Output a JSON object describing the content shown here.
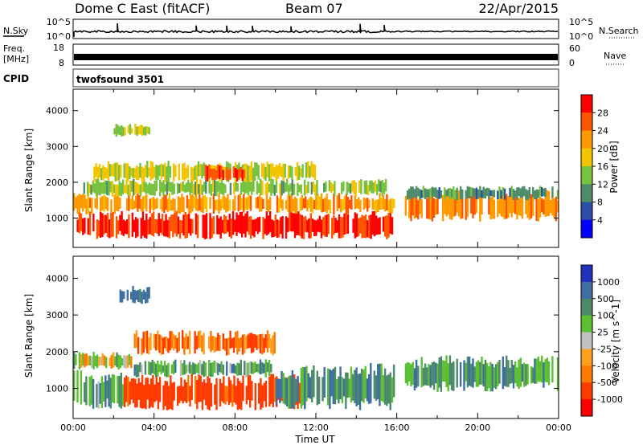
{
  "header": {
    "title": "Dome C East (fitACF)",
    "beam": "Beam 07",
    "date": "22/Apr/2015"
  },
  "housekeeping": {
    "nsky_label": "N.Sky",
    "nsky_top": "10^5",
    "nsky_bottom": "10^0",
    "nsearch_label": "N.Search",
    "nsearch_top": "10^5",
    "nsearch_bottom": "10^0",
    "freq_label_1": "Freq.",
    "freq_label_2": "[MHz]",
    "freq_top": "18",
    "freq_bottom": "8",
    "nave_label": "Nave",
    "nave_top": "60",
    "nave_bottom": "0",
    "cpid_label": "CPID",
    "cpid_value": "twofsound 3501"
  },
  "colors": {
    "power_scale": [
      "#0000ff",
      "#2a4fa5",
      "#4e8c6a",
      "#77c23f",
      "#f5c400",
      "#ff9900",
      "#ff5500",
      "#ff0000"
    ],
    "velocity_scale": [
      "#2233bb",
      "#3f6fa0",
      "#4c8a6a",
      "#5cbf33",
      "#c0c0c0",
      "#ffa020",
      "#ff7a00",
      "#ff3b00",
      "#ff0000"
    ]
  },
  "chart_data": [
    {
      "type": "heatmap",
      "name": "power",
      "xlabel": "",
      "ylabel": "Slant Range [km]",
      "x_ticks": [
        "00:00",
        "04:00",
        "08:00",
        "12:00",
        "16:00",
        "20:00",
        "00:00"
      ],
      "x_range_hours": [
        0,
        24
      ],
      "y_ticks": [
        1000,
        2000,
        3000,
        4000
      ],
      "ylim": [
        180,
        4600
      ],
      "colorbar": {
        "label": "Power [dB]",
        "ticks": [
          "4",
          "8",
          "12",
          "16",
          "20",
          "24",
          "28"
        ],
        "range": [
          0,
          32
        ]
      },
      "echo_regions": [
        {
          "t0": 0.0,
          "t1": 15.9,
          "r0": 400,
          "r1": 1200,
          "value": 29
        },
        {
          "t0": 0.0,
          "t1": 15.9,
          "r0": 1100,
          "r1": 1700,
          "value": 22
        },
        {
          "t0": 0.5,
          "t1": 15.5,
          "r0": 1600,
          "r1": 2100,
          "value": 14
        },
        {
          "t0": 1.0,
          "t1": 12.0,
          "r0": 2000,
          "r1": 2600,
          "value": 17
        },
        {
          "t0": 6.5,
          "t1": 8.5,
          "r0": 2000,
          "r1": 2500,
          "value": 27
        },
        {
          "t0": 2.0,
          "t1": 3.8,
          "r0": 3250,
          "r1": 3650,
          "value": 15
        },
        {
          "t0": 16.4,
          "t1": 24.0,
          "r0": 900,
          "r1": 1800,
          "value": 23
        },
        {
          "t0": 16.4,
          "t1": 24.0,
          "r0": 1500,
          "r1": 1900,
          "value": 10
        }
      ]
    },
    {
      "type": "heatmap",
      "name": "velocity",
      "xlabel": "Time UT",
      "ylabel": "Slant Range [km]",
      "x_ticks": [
        "00:00",
        "04:00",
        "08:00",
        "12:00",
        "16:00",
        "20:00",
        "00:00"
      ],
      "x_range_hours": [
        0,
        24
      ],
      "y_ticks": [
        1000,
        2000,
        3000,
        4000
      ],
      "ylim": [
        180,
        4600
      ],
      "colorbar": {
        "label": "Velocity [m s^-1]",
        "ticks": [
          "1000",
          "500",
          "100",
          "25",
          "-25",
          "-100",
          "-500",
          "-1000"
        ]
      },
      "echo_regions": [
        {
          "t0": 0.0,
          "t1": 2.5,
          "r0": 400,
          "r1": 1500,
          "value": 60
        },
        {
          "t0": 0.0,
          "t1": 3.0,
          "r0": 1500,
          "r1": 2000,
          "value": 0
        },
        {
          "t0": 2.5,
          "t1": 11.5,
          "r0": 400,
          "r1": 1400,
          "value": -150
        },
        {
          "t0": 3.0,
          "t1": 10.0,
          "r0": 1300,
          "r1": 1800,
          "value": 60
        },
        {
          "t0": 3.0,
          "t1": 10.0,
          "r0": 1900,
          "r1": 2600,
          "value": -80
        },
        {
          "t0": 10.0,
          "t1": 15.9,
          "r0": 400,
          "r1": 1700,
          "value": 80
        },
        {
          "t0": 2.2,
          "t1": 3.8,
          "r0": 3300,
          "r1": 3800,
          "value": 150
        },
        {
          "t0": 16.4,
          "t1": 24.0,
          "r0": 900,
          "r1": 1900,
          "value": 70
        }
      ]
    }
  ]
}
